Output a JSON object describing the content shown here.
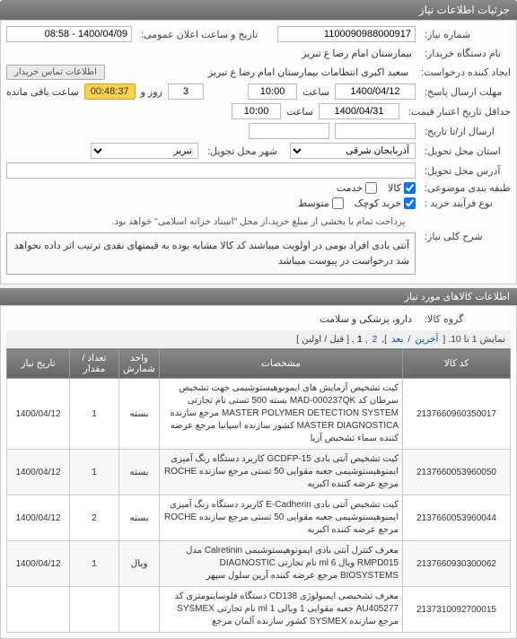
{
  "headers": {
    "main": "جزئیات اطلاعات نیاز",
    "items": "اطلاعات کالاهای مورد نیاز"
  },
  "labels": {
    "need_no": "شماره نیاز:",
    "announce_dt": "تاریخ و ساعت اعلان عمومی:",
    "buyer_org": "نام دستگاه خریدار:",
    "requester": "ایجاد کننده درخواست:",
    "contact_btn": "اطلاعات تماس خریدار",
    "deadline_answer": "مهلت ارسال پاسخ:",
    "remaining": "ساعت باقی مانده",
    "and": "روز و",
    "price_validity": "حداقل تاریخ اعتبار قیمت:",
    "send_from_to": "ارسال از/تا تاریخ:",
    "delivery_province": "استان محل تحویل:",
    "delivery_city": "شهر محل تحویل:",
    "description": "شرح کلی نیاز:",
    "address": "آدرس محل تحویل:",
    "budget_category": "طبقه بندی موضوعی:",
    "goods": "کالا",
    "service": "خدمت",
    "process_type": "نوع فرآیند خرید :",
    "small": "خرید کوچک",
    "medium": "متوسط",
    "payment_note": "پرداخت تمام یا بخشی از مبلغ خرید،از محل \"اسناد خزانه اسلامی\" خواهد بود.",
    "need_title": "شرح کلی نیاز:",
    "goods_group": "گروه کالا:"
  },
  "values": {
    "need_no": "1100090988000917",
    "announce_dt": "1400/04/09 - 08:58",
    "buyer_org": "بیمارستان امام رضا  ع  تبریز",
    "requester": "سعید اکبری انتظامات بیمارستان امام رضا  ع  تبریز",
    "deadline_date": "1400/04/12",
    "deadline_hr": "10:00",
    "deadline_min": "ساعت",
    "remaining_days": "3",
    "remaining_time": "00:48:37",
    "price_validity": "1400/04/31",
    "price_validity_hr": "10:00",
    "price_validity_min": "ساعت",
    "province": "آذربایجان شرقی",
    "city": "تبریز",
    "goods_chk": true,
    "service_chk": false,
    "small_chk": true,
    "medium_chk": false,
    "description": "آنتی بادی افراد بومی در اولویت میباشند کد کالا مشابه بوده به قیمتهای نقدی ترتیب اثر داده نخواهد شد درخواست در پیوست میباشد",
    "goods_group": "دارو، پزشکی و سلامت"
  },
  "pagination": {
    "text_prefix": "نمایش 1 تا 10.",
    "text_bracket_open": "[",
    "text_next": "آخرین",
    "text_sep": "/",
    "text_after": "بعد",
    "text_bracket_close": "],",
    "page1": "1",
    "page2": "2",
    "text_bracket2_open": ", [",
    "text_prev": "قبل",
    "text_first": "اولین",
    "text_bracket2_close": "]"
  },
  "table": {
    "headers": {
      "code": "کد کالا",
      "desc": "مشخصات",
      "unit": "واحد شمارش",
      "qty": "تعداد / مقدار",
      "date": "تاریخ نیاز"
    },
    "rows": [
      {
        "code": "2137660960350017",
        "desc": "کیت تشخیص آزمایش های ایمونوهیستوشیمی جهت تشخیص سرطان کد MAD-000237QK بسته 500 تستی نام تجارتی MASTER POLYMER DETECTION SYSTEM مرجع سازنده MASTER DIAGNOSTICA کشور سازنده اسپانیا مرجع عرضه کننده سماء تشخیص آریا",
        "unit": "بسته",
        "qty": "1",
        "date": "1400/04/12"
      },
      {
        "code": "2137660053960050",
        "desc": "کیت تشخیص آنتی بادی GCDFP-15 کاربرد دستگاه رنگ آمیزی ایمنوهیستوشیمی جعبه مقوایی 50 تستی مرجع سازنده ROCHE مرجع عرضه کننده اکبریه",
        "unit": "بسته",
        "qty": "1",
        "date": "1400/04/12"
      },
      {
        "code": "2137660053960044",
        "desc": "کیت تشخیص آنتی بادی E-Cadherin کاربرد دستگاه رنگ آمیزی ایمنوهیستوشیمی جعبه مقوایی 50 تستی مرجع سازنده ROCHE مرجع عرضه کننده اکبریه",
        "unit": "بسته",
        "qty": "2",
        "date": "1400/04/12"
      },
      {
        "code": "2137660930300062",
        "desc": "معرف کنترل آنتی بادی ایمونوهیستوشیمی Calretinin مدل RMPD015 ویال ml 6 نام تجارتی DIAGNOSTIC BIOSYSTEMS مرجع عرضه کننده آرین سلول سپهر",
        "unit": "ویال",
        "qty": "1",
        "date": "1400/04/12"
      },
      {
        "code": "2137310092700015",
        "desc": "معرف تشخیصی ایمنولوژی CD138 دستگاه فلوسایتومتری کد AU405277 جعبه مقوایی 1 ویالی ml 1 نام تجارتی SYSMEX مرجع سازنده SYSMEX کشور سازنده آلمان مرجع",
        "unit": "",
        "qty": "",
        "date": ""
      }
    ]
  }
}
